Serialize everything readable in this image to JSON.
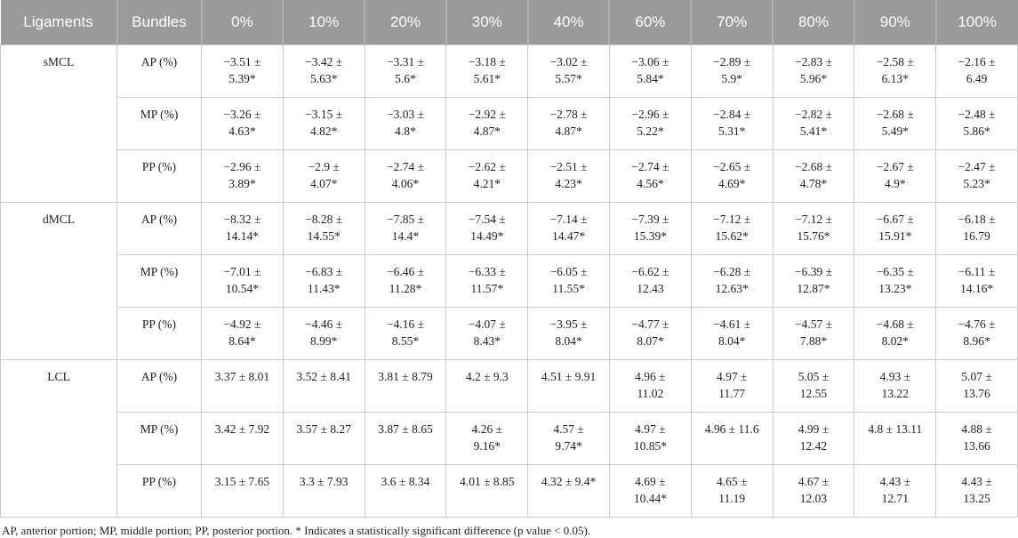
{
  "colors": {
    "header_bg": "#9a9a9a",
    "header_text": "#ffffff",
    "header_separator": "#b0b0b0",
    "cell_border": "#cbcbcb",
    "body_text": "#1f1f1f"
  },
  "table": {
    "header": [
      "Ligaments",
      "Bundles",
      "0%",
      "10%",
      "20%",
      "30%",
      "40%",
      "60%",
      "70%",
      "80%",
      "90%",
      "100%"
    ],
    "groups": [
      {
        "ligament": "sMCL",
        "rows": [
          {
            "bundle": "AP (%)",
            "values": [
              "−3.51 ± 5.39*",
              "−3.42 ± 5.63*",
              "−3.31 ± 5.6*",
              "−3.18 ± 5.61*",
              "−3.02 ± 5.57*",
              "−3.06 ± 5.84*",
              "−2.89 ± 5.9*",
              "−2.83 ± 5.96*",
              "−2.58 ± 6.13*",
              "−2.16 ± 6.49"
            ]
          },
          {
            "bundle": "MP (%)",
            "values": [
              "−3.26 ± 4.63*",
              "−3.15 ± 4.82*",
              "−3.03 ± 4.8*",
              "−2.92 ± 4.87*",
              "−2.78 ± 4.87*",
              "−2.96 ± 5.22*",
              "−2.84 ± 5.31*",
              "−2.82 ± 5.41*",
              "−2.68 ± 5.49*",
              "−2.48 ± 5.86*"
            ]
          },
          {
            "bundle": "PP (%)",
            "values": [
              "−2.96 ± 3.89*",
              "−2.9 ± 4.07*",
              "−2.74 ± 4.06*",
              "−2.62 ± 4.21*",
              "−2.51 ± 4.23*",
              "−2.74 ± 4.56*",
              "−2.65 ± 4.69*",
              "−2.68 ± 4.78*",
              "−2.67 ± 4.9*",
              "−2.47 ± 5.23*"
            ]
          }
        ]
      },
      {
        "ligament": "dMCL",
        "rows": [
          {
            "bundle": "AP (%)",
            "values": [
              "−8.32 ± 14.14*",
              "−8.28 ± 14.55*",
              "−7.85 ± 14.4*",
              "−7.54 ± 14.49*",
              "−7.14 ± 14.47*",
              "−7.39 ± 15.39*",
              "−7.12 ± 15.62*",
              "−7.12 ± 15.76*",
              "−6.67 ± 15.91*",
              "−6.18 ± 16.79"
            ]
          },
          {
            "bundle": "MP (%)",
            "values": [
              "−7.01 ± 10.54*",
              "−6.83 ± 11.43*",
              "−6.46 ± 11.28*",
              "−6.33 ± 11.57*",
              "−6.05 ± 11.55*",
              "−6.62 ± 12.43",
              "−6.28 ± 12.63*",
              "−6.39 ± 12.87*",
              "−6.35 ± 13.23*",
              "−6.11 ± 14.16*"
            ]
          },
          {
            "bundle": "PP (%)",
            "values": [
              "−4.92 ± 8.64*",
              "−4.46 ± 8.99*",
              "−4.16 ± 8.55*",
              "−4.07 ± 8.43*",
              "−3.95 ± 8.04*",
              "−4.77 ± 8.07*",
              "−4.61 ± 8.04*",
              "−4.57 ± 7.88*",
              "−4.68 ± 8.02*",
              "−4.76 ± 8.96*"
            ]
          }
        ]
      },
      {
        "ligament": "LCL",
        "rows": [
          {
            "bundle": "AP (%)",
            "values": [
              "3.37 ± 8.01",
              "3.52 ± 8.41",
              "3.81 ± 8.79",
              "4.2 ± 9.3",
              "4.51 ± 9.91",
              "4.96 ± 11.02",
              "4.97 ± 11.77",
              "5.05 ± 12.55",
              "4.93 ± 13.22",
              "5.07 ± 13.76"
            ]
          },
          {
            "bundle": "MP (%)",
            "values": [
              "3.42 ± 7.92",
              "3.57 ± 8.27",
              "3.87 ± 8.65",
              "4.26 ± 9.16*",
              "4.57 ± 9.74*",
              "4.97 ± 10.85*",
              "4.96 ± 11.6",
              "4.99 ± 12.42",
              "4.8 ± 13.11",
              "4.88 ± 13.66"
            ]
          },
          {
            "bundle": "PP (%)",
            "values": [
              "3.15 ± 7.65",
              "3.3 ± 7.93",
              "3.6 ± 8.34",
              "4.01 ± 8.85",
              "4.32 ± 9.4*",
              "4.69 ± 10.44*",
              "4.65 ± 11.19",
              "4.67 ± 12.03",
              "4.43 ± 12.71",
              "4.43 ± 13.25"
            ]
          }
        ]
      }
    ],
    "footnote": "AP, anterior portion; MP, middle portion; PP, posterior portion. * Indicates a statistically significant difference (p value < 0.05)."
  }
}
